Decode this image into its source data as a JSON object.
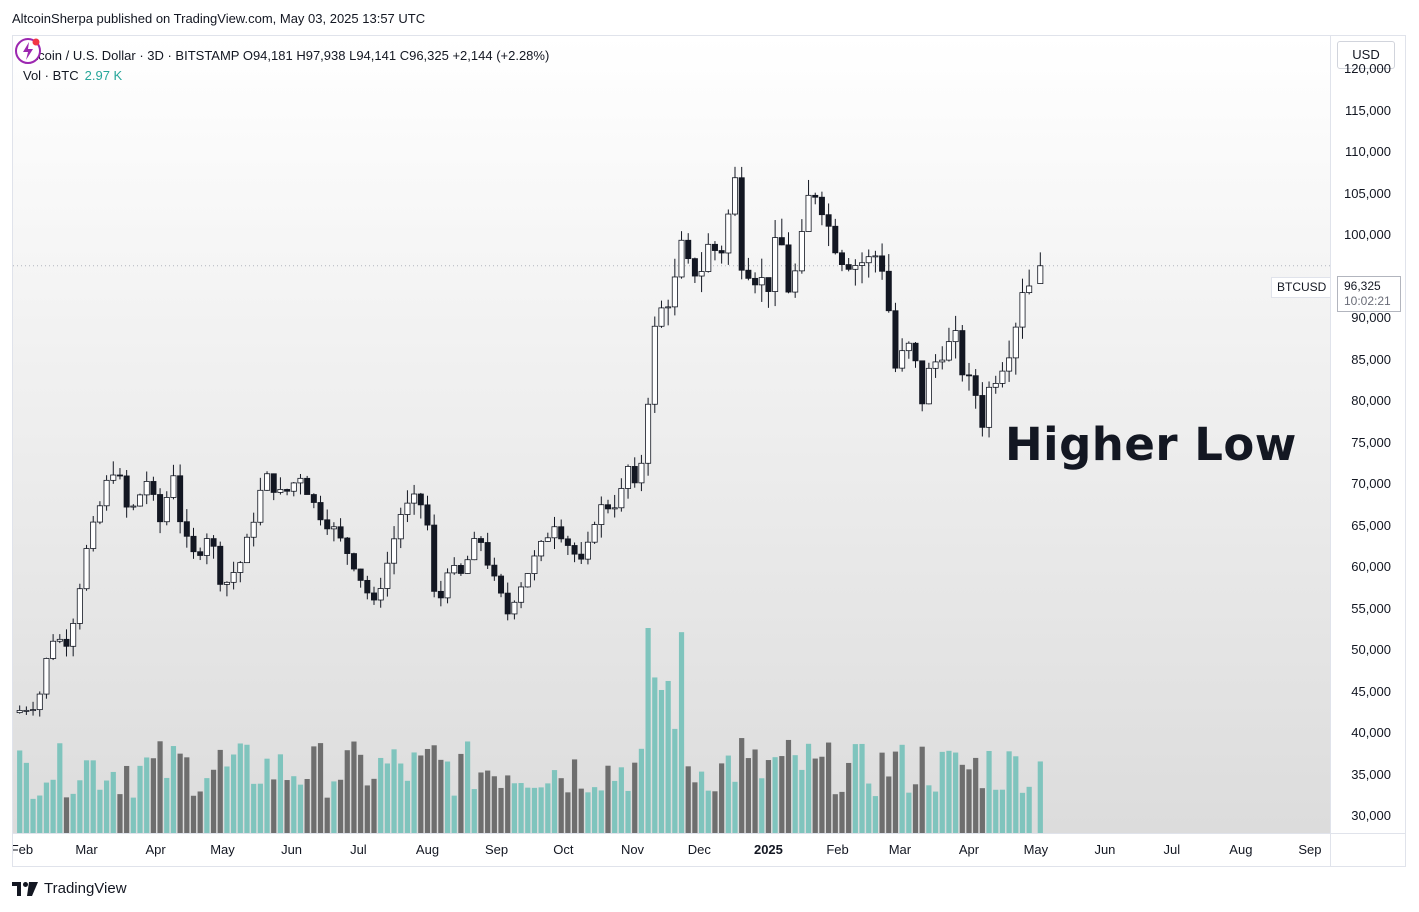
{
  "header": {
    "publisher_line": "AltcoinSherpa published on TradingView.com, May 03, 2025 13:57 UTC"
  },
  "legend": {
    "symbol_line": "Bitcoin / U.S. Dollar · 3D · BITSTAMP  O94,181  H97,938  L94,141  C96,325  +2,144 (+2.28%)",
    "vol_label": "Vol · BTC",
    "vol_value": "2.97 K"
  },
  "annotation": {
    "text": "Higher Low"
  },
  "price_scale": {
    "currency": "USD",
    "ticks": [
      "120,000",
      "115,000",
      "110,000",
      "105,000",
      "100,000",
      "90,000",
      "85,000",
      "80,000",
      "75,000",
      "70,000",
      "65,000",
      "60,000",
      "55,000",
      "50,000",
      "45,000",
      "40,000",
      "35,000",
      "30,000"
    ],
    "last_price": "96,325",
    "countdown": "10:02:21",
    "symbol_tag": "BTCUSD"
  },
  "time_scale": {
    "ticks": [
      {
        "label": "Feb",
        "bold": false
      },
      {
        "label": "Mar",
        "bold": false
      },
      {
        "label": "Apr",
        "bold": false
      },
      {
        "label": "May",
        "bold": false
      },
      {
        "label": "Jun",
        "bold": false
      },
      {
        "label": "Jul",
        "bold": false
      },
      {
        "label": "Aug",
        "bold": false
      },
      {
        "label": "Sep",
        "bold": false
      },
      {
        "label": "Oct",
        "bold": false
      },
      {
        "label": "Nov",
        "bold": false
      },
      {
        "label": "Dec",
        "bold": false
      },
      {
        "label": "2025",
        "bold": true
      },
      {
        "label": "Feb",
        "bold": false
      },
      {
        "label": "Mar",
        "bold": false
      },
      {
        "label": "Apr",
        "bold": false
      },
      {
        "label": "May",
        "bold": false
      },
      {
        "label": "Jun",
        "bold": false
      },
      {
        "label": "Jul",
        "bold": false
      },
      {
        "label": "Aug",
        "bold": false
      },
      {
        "label": "Sep",
        "bold": false
      }
    ]
  },
  "footer": {
    "brand": "TradingView"
  },
  "colors": {
    "up_volume": "#7fc4bd",
    "down_volume": "#6e6e6e",
    "candle_down": "#131722",
    "candle_up": "#ffffff",
    "wick": "#131722"
  },
  "chart_data": {
    "type": "candlestick",
    "symbol": "BTCUSD",
    "interval": "3D",
    "ylim": [
      28000,
      124000
    ],
    "x_start": "2024-01-28",
    "x_end": "2025-09-10",
    "anchors": [
      [
        "2024-01-28",
        42500
      ],
      [
        "2024-02-08",
        43500
      ],
      [
        "2024-02-14",
        51500
      ],
      [
        "2024-02-22",
        51000
      ],
      [
        "2024-03-01",
        62000
      ],
      [
        "2024-03-10",
        70000
      ],
      [
        "2024-03-14",
        72500
      ],
      [
        "2024-03-20",
        66000
      ],
      [
        "2024-03-28",
        70500
      ],
      [
        "2024-04-03",
        65500
      ],
      [
        "2024-04-09",
        71500
      ],
      [
        "2024-04-13",
        64000
      ],
      [
        "2024-04-19",
        61000
      ],
      [
        "2024-04-25",
        64500
      ],
      [
        "2024-05-01",
        57500
      ],
      [
        "2024-05-10",
        61000
      ],
      [
        "2024-05-20",
        71000
      ],
      [
        "2024-05-28",
        68500
      ],
      [
        "2024-06-05",
        71200
      ],
      [
        "2024-06-12",
        67000
      ],
      [
        "2024-06-20",
        64500
      ],
      [
        "2024-06-28",
        61000
      ],
      [
        "2024-07-05",
        57000
      ],
      [
        "2024-07-08",
        55500
      ],
      [
        "2024-07-14",
        60500
      ],
      [
        "2024-07-20",
        66500
      ],
      [
        "2024-07-28",
        68500
      ],
      [
        "2024-08-01",
        65000
      ],
      [
        "2024-08-05",
        54000
      ],
      [
        "2024-08-10",
        60000
      ],
      [
        "2024-08-16",
        59000
      ],
      [
        "2024-08-24",
        64000
      ],
      [
        "2024-08-30",
        59000
      ],
      [
        "2024-09-06",
        54500
      ],
      [
        "2024-09-10",
        57000
      ],
      [
        "2024-09-18",
        61000
      ],
      [
        "2024-09-27",
        65500
      ],
      [
        "2024-10-05",
        62000
      ],
      [
        "2024-10-10",
        60000
      ],
      [
        "2024-10-16",
        67000
      ],
      [
        "2024-10-22",
        67500
      ],
      [
        "2024-10-26",
        68000
      ],
      [
        "2024-10-30",
        72000
      ],
      [
        "2024-11-03",
        68500
      ],
      [
        "2024-11-06",
        75000
      ],
      [
        "2024-11-11",
        88500
      ],
      [
        "2024-11-14",
        91000
      ],
      [
        "2024-11-19",
        93000
      ],
      [
        "2024-11-23",
        98500
      ],
      [
        "2024-11-27",
        95500
      ],
      [
        "2024-12-02",
        96000
      ],
      [
        "2024-12-06",
        99500
      ],
      [
        "2024-12-10",
        97000
      ],
      [
        "2024-12-13",
        101000
      ],
      [
        "2024-12-17",
        106500
      ],
      [
        "2024-12-20",
        97000
      ],
      [
        "2024-12-26",
        95000
      ],
      [
        "2025-01-01",
        94000
      ],
      [
        "2025-01-06",
        101500
      ],
      [
        "2025-01-09",
        93000
      ],
      [
        "2025-01-14",
        96000
      ],
      [
        "2025-01-20",
        106000
      ],
      [
        "2025-01-24",
        104500
      ],
      [
        "2025-01-28",
        101000
      ],
      [
        "2025-02-02",
        97500
      ],
      [
        "2025-02-08",
        96500
      ],
      [
        "2025-02-15",
        97000
      ],
      [
        "2025-02-20",
        98000
      ],
      [
        "2025-02-24",
        91000
      ],
      [
        "2025-02-27",
        84000
      ],
      [
        "2025-03-03",
        86000
      ],
      [
        "2025-03-07",
        87000
      ],
      [
        "2025-03-10",
        79000
      ],
      [
        "2025-03-14",
        83500
      ],
      [
        "2025-03-20",
        86000
      ],
      [
        "2025-03-26",
        87500
      ],
      [
        "2025-03-30",
        82500
      ],
      [
        "2025-04-03",
        82000
      ],
      [
        "2025-04-07",
        77500
      ],
      [
        "2025-04-10",
        81500
      ],
      [
        "2025-04-16",
        84500
      ],
      [
        "2025-04-21",
        87500
      ],
      [
        "2025-04-24",
        93500
      ],
      [
        "2025-04-27",
        94100
      ],
      [
        "2025-04-30",
        94200
      ],
      [
        "2025-05-03",
        96325
      ]
    ],
    "last_candle": {
      "open": 94181,
      "high": 97938,
      "low": 94141,
      "close": 96325
    },
    "volume_ylim": [
      0,
      11000
    ]
  }
}
